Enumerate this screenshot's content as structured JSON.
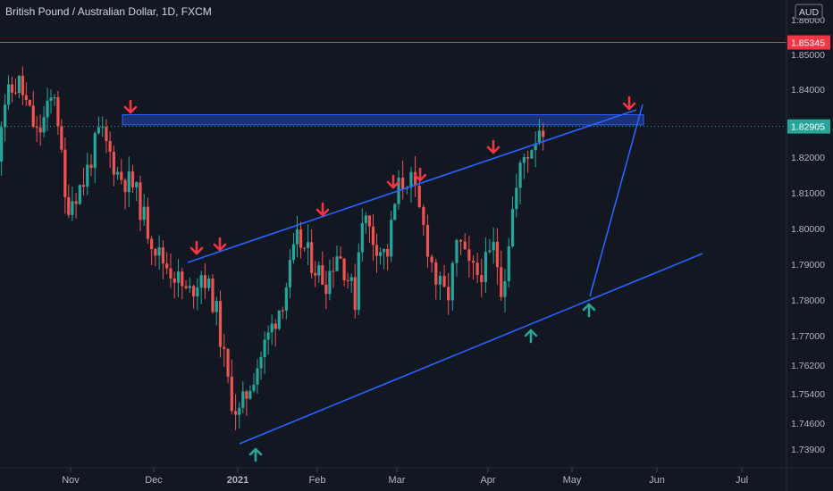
{
  "header": {
    "title": "British Pound / Australian Dollar, 1D, FXCM",
    "currency": "AUD"
  },
  "chart_data": {
    "type": "candlestick",
    "title": "British Pound / Australian Dollar, 1D, FXCM",
    "y_axis": {
      "unit": "AUD",
      "ticks": [
        {
          "label": "1.73900",
          "value": 1.739
        },
        {
          "label": "1.74600",
          "value": 1.746
        },
        {
          "label": "1.75400",
          "value": 1.754
        },
        {
          "label": "1.76200",
          "value": 1.762
        },
        {
          "label": "1.77000",
          "value": 1.77
        },
        {
          "label": "1.78000",
          "value": 1.78
        },
        {
          "label": "1.79000",
          "value": 1.79
        },
        {
          "label": "1.80000",
          "value": 1.8
        },
        {
          "label": "1.81000",
          "value": 1.81
        },
        {
          "label": "1.82000",
          "value": 1.82
        },
        {
          "label": "1.84000",
          "value": 1.84
        },
        {
          "label": "1.85000",
          "value": 1.85
        },
        {
          "label": "1.86000",
          "value": 1.86
        }
      ]
    },
    "x_axis": {
      "ticks": [
        "Nov",
        "Dec",
        "2021",
        "Feb",
        "Mar",
        "Apr",
        "May",
        "Jun",
        "Jul"
      ],
      "bold": [
        "2021"
      ]
    },
    "price_labels": [
      {
        "label": "1.85345",
        "value": 1.85345,
        "color": "#f23645"
      },
      {
        "label": "1.82905",
        "value": 1.82905,
        "color": "#26a69a"
      }
    ],
    "lines": {
      "horizontal_high": 1.85345,
      "current_price": 1.82905
    },
    "colors": {
      "up": "#26a69a",
      "down": "#ef5350",
      "trendline": "#2962ff",
      "zone": "#2962ff",
      "arrow_down": "#f23645",
      "arrow_up": "#26a69a",
      "high_line": "#f23645"
    },
    "grid": false
  }
}
